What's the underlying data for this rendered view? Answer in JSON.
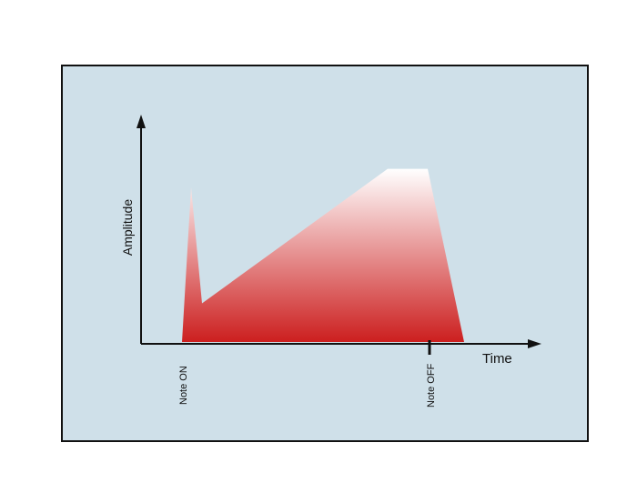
{
  "colors": {
    "panel_background": "#cfe0e9",
    "frame_border": "#111111",
    "envelope_top": "#ffffff",
    "envelope_bottom": "#cc1f1f",
    "axis": "#111111"
  },
  "axes": {
    "y_label": "Amplitude",
    "x_label": "Time"
  },
  "markers": {
    "note_on": "Note ON",
    "note_off": "Note OFF"
  },
  "chart_data": {
    "type": "area",
    "x": [
      0,
      10,
      22,
      226,
      270,
      310
    ],
    "y": [
      0,
      1,
      0.25,
      1.12,
      1.12,
      0
    ],
    "xlabel": "Time",
    "ylabel": "Amplitude",
    "annotations": [
      "Note ON",
      "Note OFF"
    ]
  }
}
